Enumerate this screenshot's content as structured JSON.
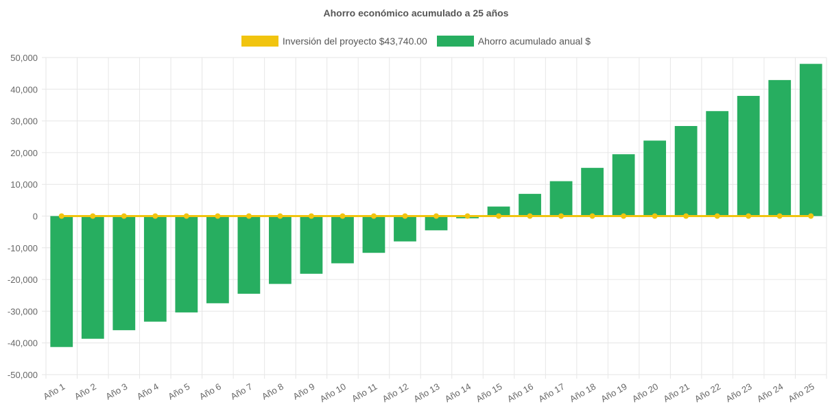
{
  "colors": {
    "bar": "#27ae60",
    "line": "#f1c40f",
    "grid": "#e6e6e6",
    "text": "#666666"
  },
  "chart_data": {
    "type": "bar",
    "title": "Ahorro económico acumulado a 25 años",
    "xlabel": "",
    "ylabel": "",
    "ylim": [
      -50000,
      50000
    ],
    "y_ticks": [
      "50,000",
      "40,000",
      "30,000",
      "20,000",
      "10,000",
      "0",
      "-10,000",
      "-20,000",
      "-30,000",
      "-40,000",
      "-50,000"
    ],
    "grid": true,
    "legend_position": "top",
    "categories": [
      "Año 1",
      "Año 2",
      "Año 3",
      "Año 4",
      "Año 5",
      "Año 6",
      "Año 7",
      "Año 8",
      "Año 9",
      "Año 10",
      "Año 11",
      "Año 12",
      "Año 13",
      "Año 14",
      "Año 15",
      "Año 16",
      "Año 17",
      "Año 18",
      "Año 19",
      "Año 20",
      "Año 21",
      "Año 22",
      "Año 23",
      "Año 24",
      "Año 25"
    ],
    "series": [
      {
        "name": "Inversión del proyecto $43,740.00",
        "type": "line",
        "color": "#f1c40f",
        "values": [
          0,
          0,
          0,
          0,
          0,
          0,
          0,
          0,
          0,
          0,
          0,
          0,
          0,
          0,
          0,
          0,
          0,
          0,
          0,
          0,
          0,
          0,
          0,
          0,
          0
        ]
      },
      {
        "name": "Ahorro acumulado anual $",
        "type": "bar",
        "color": "#27ae60",
        "values": [
          -41300,
          -38700,
          -36000,
          -33300,
          -30400,
          -27500,
          -24500,
          -21400,
          -18200,
          -14900,
          -11600,
          -8000,
          -4500,
          -700,
          3000,
          7000,
          11000,
          15200,
          19500,
          23800,
          28400,
          33100,
          37900,
          42900,
          48000
        ]
      }
    ]
  }
}
